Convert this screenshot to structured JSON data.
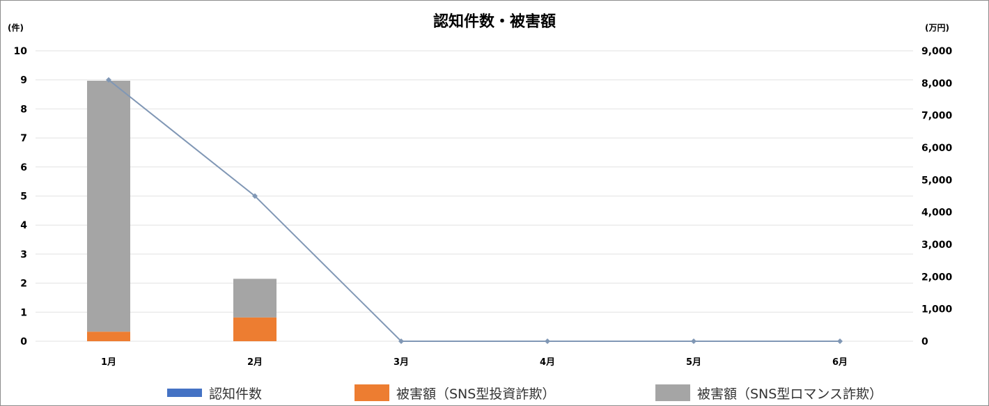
{
  "chart_data": {
    "type": "bar",
    "title": "認知件数・被害額",
    "categories": [
      "1月",
      "2月",
      "3月",
      "4月",
      "5月",
      "6月"
    ],
    "left_axis": {
      "label": "(件)",
      "min": 0,
      "max": 10,
      "ticks": [
        "0",
        "1",
        "2",
        "3",
        "4",
        "5",
        "6",
        "7",
        "8",
        "9",
        "10"
      ]
    },
    "right_axis": {
      "label": "(万円)",
      "min": 0,
      "max": 9000,
      "ticks": [
        "0",
        "1,000",
        "2,000",
        "3,000",
        "4,000",
        "5,000",
        "6,000",
        "7,000",
        "8,000",
        "9,000"
      ]
    },
    "series": [
      {
        "name": "認知件数",
        "kind": "line",
        "axis": "right",
        "color": "#8097b5",
        "legend_color": "#4472c4",
        "values": [
          8100,
          4500,
          0,
          0,
          0,
          0
        ]
      },
      {
        "name": "被害額（SNS型投資詐欺）",
        "kind": "bar",
        "axis": "left",
        "color": "#ed7d31",
        "values": [
          0.33,
          0.82,
          0,
          0,
          0,
          0
        ]
      },
      {
        "name": "被害額（SNS型ロマンス詐欺）",
        "kind": "bar",
        "axis": "left",
        "color": "#a5a5a5",
        "values": [
          8.64,
          1.33,
          0,
          0,
          0,
          0
        ]
      }
    ],
    "grid": true,
    "legend_position": "bottom"
  }
}
